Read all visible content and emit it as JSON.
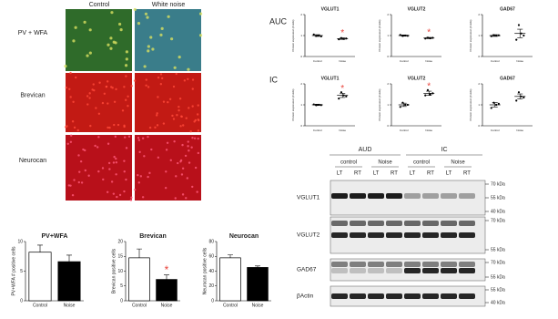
{
  "labels": {
    "auc": "AUC",
    "ic": "IC"
  },
  "microscopy": {
    "columns": [
      "Control",
      "White noise"
    ],
    "rows": [
      "PV + WFA",
      "Brevican",
      "Neurocan"
    ]
  },
  "western_blot": {
    "regions": [
      "AUD",
      "IC"
    ],
    "groups": [
      "control",
      "Noise",
      "control",
      "Noise"
    ],
    "lanes": [
      "LT",
      "RT",
      "LT",
      "RT",
      "LT",
      "RT",
      "LT",
      "RT"
    ],
    "proteins": [
      {
        "name": "VGLUT1",
        "markers": [
          "70 kDa",
          "55 kDa",
          "40 kDa"
        ]
      },
      {
        "name": "VGLUT2",
        "markers": [
          "70 kDa",
          "55 kDa"
        ]
      },
      {
        "name": "GAD67",
        "markers": [
          "70 kDa",
          "55 kDa"
        ]
      },
      {
        "name": "βActin",
        "markers": [
          "55 kDa",
          "40 kDa"
        ]
      }
    ]
  },
  "chart_data": [
    {
      "type": "bar",
      "title": "PV+WFA",
      "ylabel": "PV+WFA # positive cells",
      "categories": [
        "Control",
        "Noise"
      ],
      "values": [
        8.2,
        6.6
      ],
      "errors": [
        1.2,
        1.1
      ],
      "colors": [
        "#ffffff",
        "#000000"
      ],
      "ylim": [
        0,
        10
      ],
      "yticks": [
        0,
        5,
        10
      ]
    },
    {
      "type": "bar",
      "title": "Brevican",
      "ylabel": "Brevican positive cells",
      "categories": [
        "Control",
        "Noise"
      ],
      "values": [
        14.5,
        7.2
      ],
      "errors": [
        3,
        1.5
      ],
      "colors": [
        "#ffffff",
        "#000000"
      ],
      "ylim": [
        0,
        20
      ],
      "yticks": [
        0,
        5,
        10,
        15,
        20
      ],
      "annotation": "*"
    },
    {
      "type": "bar",
      "title": "Neurocan",
      "ylabel": "Neurocan positive cells",
      "categories": [
        "Control",
        "Noise"
      ],
      "values": [
        58,
        45
      ],
      "errors": [
        4,
        2
      ],
      "colors": [
        "#ffffff",
        "#000000"
      ],
      "ylim": [
        0,
        80
      ],
      "yticks": [
        0,
        20,
        40,
        60,
        80
      ]
    },
    {
      "type": "dot",
      "title": "VGLUT1",
      "ylabel": "Protein expression (Folds)",
      "categories": [
        "Control",
        "Noise"
      ],
      "values": [
        1.0,
        0.85
      ],
      "errors": [
        0.04,
        0.04
      ],
      "points": [
        [
          1.05,
          0.98,
          1.0,
          0.96
        ],
        [
          0.82,
          0.88,
          0.84,
          0.86
        ]
      ],
      "ylim": [
        0,
        2
      ],
      "yticks": [
        0,
        1,
        2
      ],
      "annotation": "*"
    },
    {
      "type": "dot",
      "title": "VGLUT2",
      "ylabel": "Protein expression (Folds)",
      "categories": [
        "Control",
        "Noise"
      ],
      "values": [
        1.0,
        0.88
      ],
      "errors": [
        0.03,
        0.03
      ],
      "points": [
        [
          1.03,
          0.98,
          1.0,
          0.99
        ],
        [
          0.86,
          0.9,
          0.87,
          0.89
        ]
      ],
      "ylim": [
        0,
        2
      ],
      "yticks": [
        0,
        1,
        2
      ],
      "annotation": "*"
    },
    {
      "type": "dot",
      "title": "GAD67",
      "ylabel": "Protein expression (Folds)",
      "categories": [
        "Control",
        "Noise"
      ],
      "values": [
        1.0,
        1.1
      ],
      "errors": [
        0.04,
        0.2
      ],
      "points": [
        [
          0.97,
          1.02,
          1.0,
          1.01
        ],
        [
          0.8,
          1.5,
          1.1,
          1.0
        ]
      ],
      "ylim": [
        0,
        2
      ],
      "yticks": [
        0,
        1,
        2
      ]
    },
    {
      "type": "dot",
      "title": "VGLUT1",
      "ylabel": "Protein expression (Folds)",
      "categories": [
        "Control",
        "Noise"
      ],
      "values": [
        1.0,
        1.45
      ],
      "errors": [
        0.03,
        0.1
      ],
      "points": [
        [
          1.02,
          0.98,
          1.0,
          0.99
        ],
        [
          1.3,
          1.6,
          1.45,
          1.4
        ]
      ],
      "ylim": [
        0,
        2
      ],
      "yticks": [
        0,
        1,
        2
      ],
      "annotation": "*"
    },
    {
      "type": "dot",
      "title": "VGLUT2",
      "ylabel": "Protein expression (Folds)",
      "categories": [
        "Control",
        "Noise"
      ],
      "values": [
        1.0,
        1.55
      ],
      "errors": [
        0.08,
        0.1
      ],
      "points": [
        [
          0.9,
          1.1,
          1.0,
          1.0
        ],
        [
          1.45,
          1.7,
          1.5,
          1.55
        ]
      ],
      "ylim": [
        0,
        2
      ],
      "yticks": [
        0,
        1,
        2
      ],
      "annotation": "*"
    },
    {
      "type": "dot",
      "title": "GAD67",
      "ylabel": "Protein expression (Folds)",
      "categories": [
        "Control",
        "Noise"
      ],
      "values": [
        1.0,
        1.4
      ],
      "errors": [
        0.1,
        0.12
      ],
      "points": [
        [
          0.85,
          1.1,
          1.0,
          1.05
        ],
        [
          1.2,
          1.6,
          1.4,
          1.35
        ]
      ],
      "ylim": [
        0,
        2
      ],
      "yticks": [
        0,
        1,
        2
      ]
    }
  ]
}
